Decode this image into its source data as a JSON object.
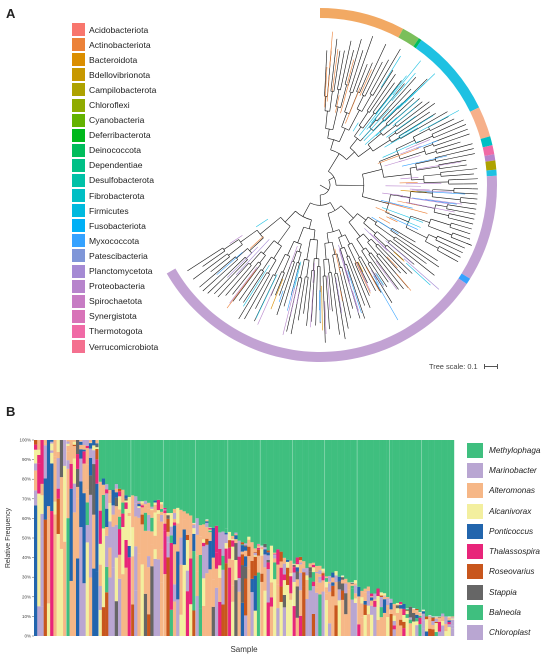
{
  "panel_a": {
    "letter": "A",
    "legend": [
      {
        "label": "Acidobacteriota",
        "color": "#f8766d"
      },
      {
        "label": "Actinobacteriota",
        "color": "#ec8239"
      },
      {
        "label": "Bacteroidota",
        "color": "#db8e00"
      },
      {
        "label": "Bdellovibrionota",
        "color": "#c79800"
      },
      {
        "label": "Campilobacterota",
        "color": "#aea200"
      },
      {
        "label": "Chloroflexi",
        "color": "#8fab00"
      },
      {
        "label": "Cyanobacteria",
        "color": "#64b200"
      },
      {
        "label": "Deferribacterota",
        "color": "#00b81b"
      },
      {
        "label": "Deinococcota",
        "color": "#00bd5c"
      },
      {
        "label": "Dependentiae",
        "color": "#00c086"
      },
      {
        "label": "Desulfobacterota",
        "color": "#00c1a7"
      },
      {
        "label": "Fibrobacterota",
        "color": "#00bfc4"
      },
      {
        "label": "Firmicutes",
        "color": "#00bade"
      },
      {
        "label": "Fusobacteriota",
        "color": "#00b0f6"
      },
      {
        "label": "Myxococcota",
        "color": "#35a2ff"
      },
      {
        "label": "Patescibacteria",
        "color": "#7f96d8"
      },
      {
        "label": "Planctomycetota",
        "color": "#a58ad4"
      },
      {
        "label": "Proteobacteria",
        "color": "#b784cc"
      },
      {
        "label": "Spirochaetota",
        "color": "#c77cc4"
      },
      {
        "label": "Synergistota",
        "color": "#d873b8"
      },
      {
        "label": "Thermotogota",
        "color": "#f06aa6"
      },
      {
        "label": "Verrucomicrobiota",
        "color": "#f4708f"
      }
    ],
    "tree_scale_label": "Tree scale: 0.1"
  },
  "panel_b": {
    "letter": "B",
    "chart_data": {
      "type": "bar",
      "stacked": true,
      "xlabel": "Sample",
      "ylabel": "Relative Frequency",
      "ylim": [
        0,
        100
      ],
      "y_ticks": [
        "0%",
        "10%",
        "20%",
        "30%",
        "40%",
        "50%",
        "60%",
        "70%",
        "80%",
        "90%",
        "100%"
      ],
      "n_samples": 130,
      "series": [
        {
          "name": "Methylophaga",
          "color": "#3fbf7f"
        },
        {
          "name": "Marinobacter",
          "color": "#b9a6d2"
        },
        {
          "name": "Alteromonas",
          "color": "#f6b787"
        },
        {
          "name": "Alcanivorax",
          "color": "#f3ef9f"
        },
        {
          "name": "Ponticoccus",
          "color": "#2265ad"
        },
        {
          "name": "Thalassospira",
          "color": "#e8257a"
        },
        {
          "name": "Roseovarius",
          "color": "#c8561d"
        },
        {
          "name": "Stappia",
          "color": "#666666"
        },
        {
          "name": "Balneola",
          "color": "#3fbf7f"
        },
        {
          "name": "Chloroplast",
          "color": "#b9a6d2"
        }
      ],
      "methylophaga_top_share_start": 0,
      "methylophaga_top_share_end": 100
    }
  }
}
